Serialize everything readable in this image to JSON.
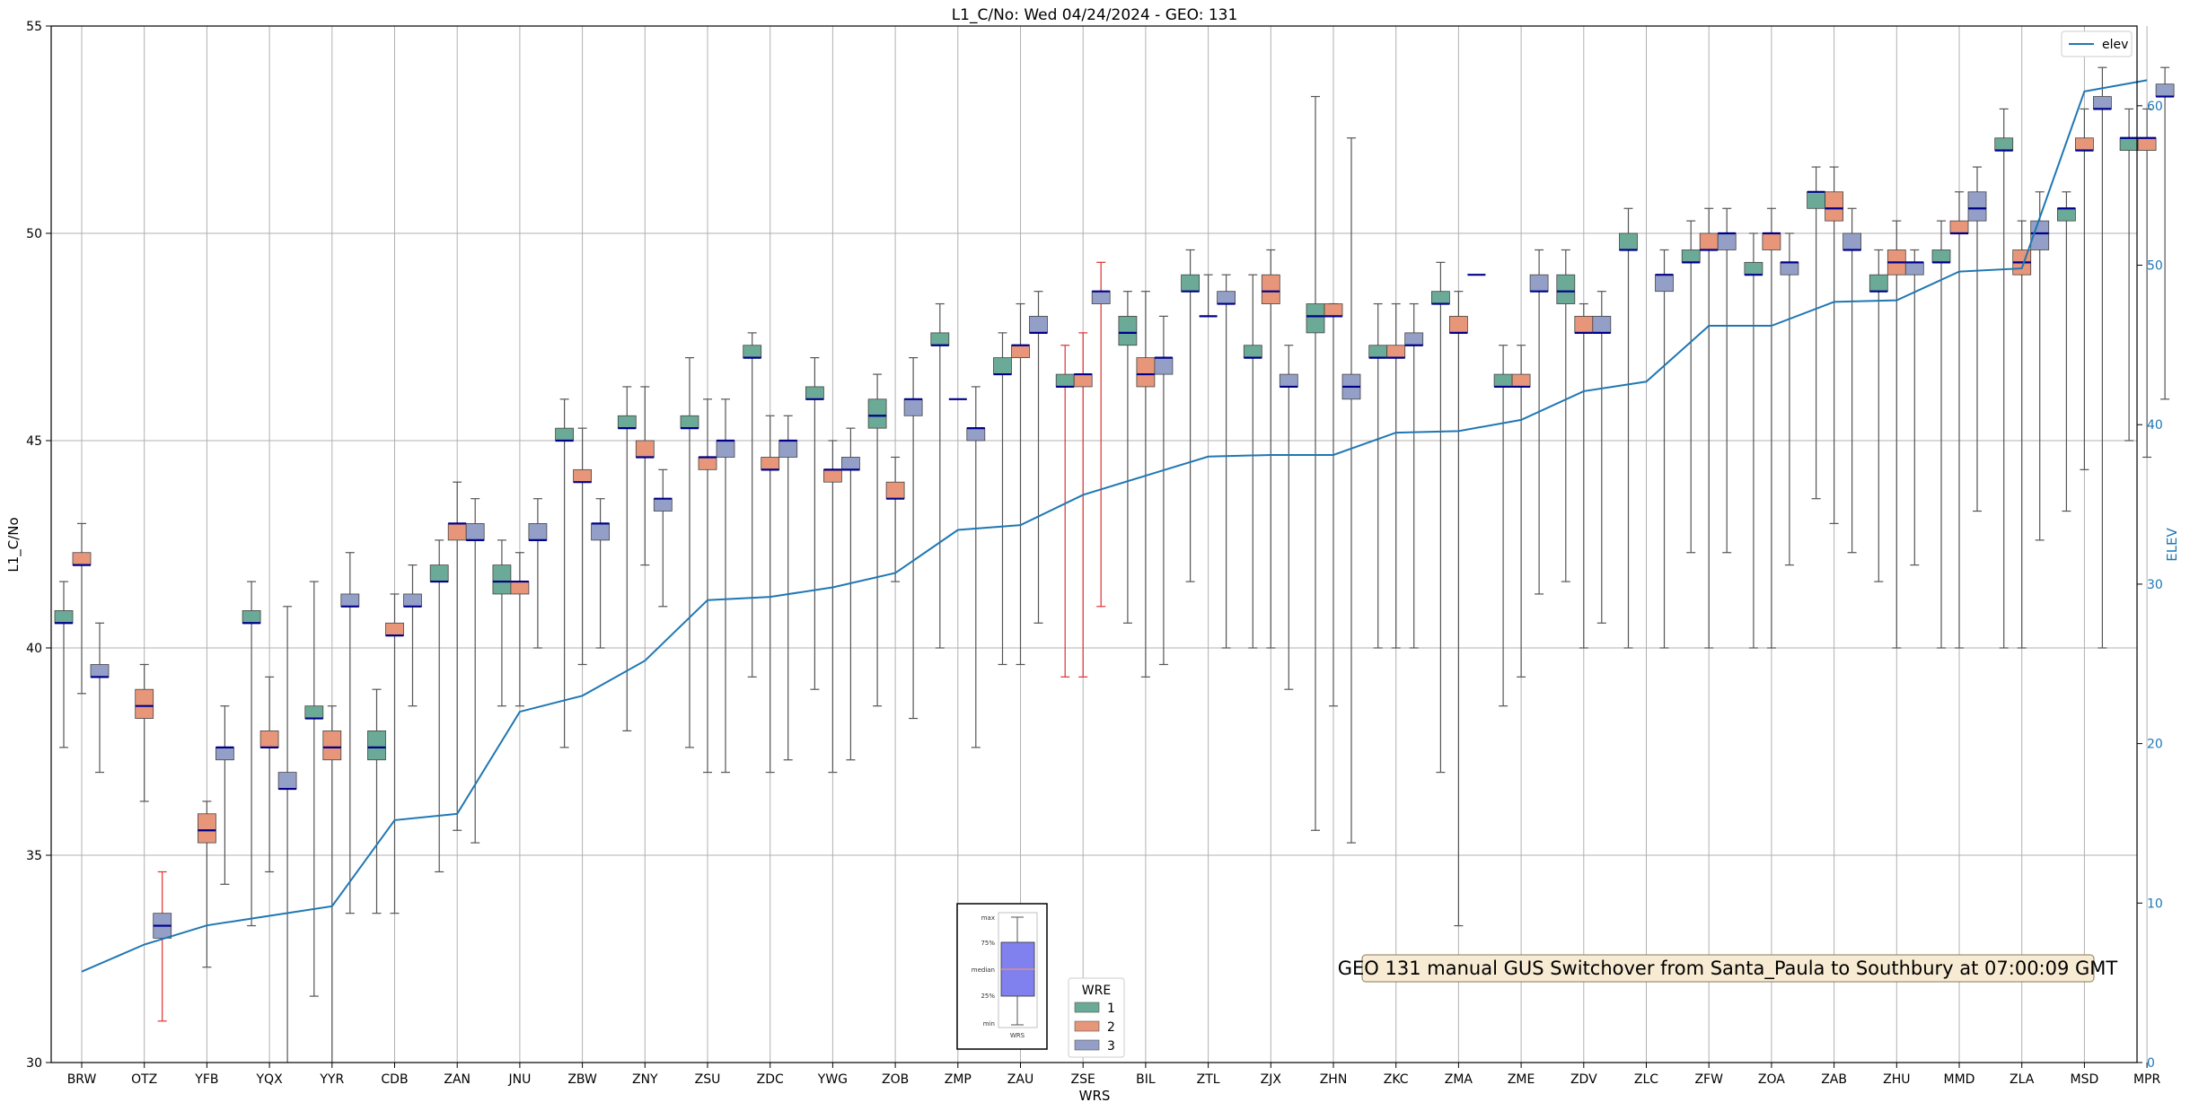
{
  "chart_data": {
    "type": "box",
    "title": "L1_C/No: Wed 04/24/2024 - GEO: 131",
    "xlabel": "WRS",
    "ylabel": "L1_C/No",
    "y2label": "ELEV",
    "ylim": [
      30,
      55
    ],
    "y2lim": [
      0,
      65
    ],
    "yticks": [
      30,
      35,
      40,
      45,
      50,
      55
    ],
    "y2ticks": [
      0,
      10,
      20,
      30,
      40,
      50,
      60
    ],
    "grid": true,
    "categories": [
      "BRW",
      "OTZ",
      "YFB",
      "YQX",
      "YYR",
      "CDB",
      "ZAN",
      "JNU",
      "ZBW",
      "ZNY",
      "ZSU",
      "ZDC",
      "YWG",
      "ZOB",
      "ZMP",
      "ZAU",
      "ZSE",
      "BIL",
      "ZTL",
      "ZJX",
      "ZHN",
      "ZKC",
      "ZMA",
      "ZME",
      "ZDV",
      "ZLC",
      "ZFW",
      "ZOA",
      "ZAB",
      "ZHU",
      "MMD",
      "ZLA",
      "MSD",
      "MPR"
    ],
    "elev": {
      "name": "elev",
      "values": [
        5.7,
        7.4,
        8.6,
        9.2,
        9.8,
        15.2,
        15.6,
        22.0,
        23.0,
        25.2,
        29.0,
        29.2,
        29.8,
        30.7,
        33.4,
        33.7,
        35.6,
        36.8,
        38.0,
        38.1,
        38.1,
        39.5,
        39.6,
        40.3,
        42.1,
        42.7,
        46.2,
        46.2,
        47.7,
        47.8,
        49.6,
        49.8,
        60.9,
        61.6
      ]
    },
    "series": [
      {
        "name": "1",
        "color": "#6aaa96",
        "boxes": [
          [
            37.6,
            40.6,
            40.6,
            40.9,
            41.6
          ],
          null,
          null,
          [
            33.3,
            40.6,
            40.6,
            40.9,
            41.6
          ],
          [
            31.6,
            38.3,
            38.3,
            38.6,
            41.6
          ],
          [
            33.6,
            37.3,
            37.6,
            38.0,
            39.0
          ],
          [
            34.6,
            41.6,
            41.6,
            42.0,
            42.6
          ],
          [
            38.6,
            41.3,
            41.6,
            42.0,
            42.6
          ],
          [
            37.6,
            45.0,
            45.0,
            45.3,
            46.0
          ],
          [
            38.0,
            45.3,
            45.3,
            45.6,
            46.3
          ],
          [
            37.6,
            45.3,
            45.3,
            45.6,
            47.0
          ],
          [
            39.3,
            47.0,
            47.0,
            47.3,
            47.6
          ],
          [
            39.0,
            46.0,
            46.0,
            46.3,
            47.0
          ],
          [
            38.6,
            45.3,
            45.6,
            46.0,
            46.6
          ],
          [
            40.0,
            47.3,
            47.3,
            47.6,
            48.3
          ],
          [
            39.6,
            46.6,
            46.6,
            47.0,
            47.6
          ],
          [
            39.3,
            46.3,
            46.3,
            46.6,
            47.3
          ],
          [
            40.6,
            47.3,
            47.6,
            48.0,
            48.6
          ],
          [
            41.6,
            48.6,
            48.6,
            49.0,
            49.6
          ],
          [
            40.0,
            47.0,
            47.0,
            47.3,
            49.0
          ],
          [
            35.6,
            47.6,
            48.0,
            48.3,
            53.3
          ],
          [
            40.0,
            47.0,
            47.0,
            47.3,
            48.3
          ],
          [
            37.0,
            48.3,
            48.3,
            48.6,
            49.3
          ],
          [
            38.6,
            46.3,
            46.3,
            46.6,
            47.3
          ],
          [
            41.6,
            48.3,
            48.6,
            49.0,
            49.6
          ],
          [
            40.0,
            49.6,
            49.6,
            50.0,
            50.6
          ],
          [
            42.3,
            49.3,
            49.3,
            49.6,
            50.3
          ],
          [
            40.0,
            49.0,
            49.0,
            49.3,
            50.0
          ],
          [
            43.6,
            50.6,
            51.0,
            51.0,
            51.6
          ],
          [
            41.6,
            48.6,
            48.6,
            49.0,
            49.6
          ],
          [
            40.0,
            49.3,
            49.3,
            49.6,
            50.3
          ],
          [
            40.0,
            52.0,
            52.0,
            52.3,
            53.0
          ],
          [
            43.3,
            50.3,
            50.6,
            50.6,
            51.0
          ],
          [
            45.0,
            52.0,
            52.3,
            52.3,
            53.0
          ]
        ]
      },
      {
        "name": "2",
        "color": "#e8967a",
        "boxes": [
          [
            38.9,
            42.0,
            42.0,
            42.3,
            43.0
          ],
          [
            36.3,
            38.3,
            38.6,
            39.0,
            39.6
          ],
          [
            32.3,
            35.3,
            35.6,
            36.0,
            36.3
          ],
          [
            34.6,
            37.6,
            37.6,
            38.0,
            39.3
          ],
          [
            29.0,
            37.3,
            37.6,
            38.0,
            38.6
          ],
          [
            33.6,
            40.3,
            40.3,
            40.6,
            41.3
          ],
          [
            35.6,
            42.6,
            43.0,
            43.0,
            44.0
          ],
          [
            38.6,
            41.3,
            41.6,
            41.6,
            42.3
          ],
          [
            39.6,
            44.0,
            44.0,
            44.3,
            45.3
          ],
          [
            42.0,
            44.6,
            44.6,
            45.0,
            46.3
          ],
          [
            37.0,
            44.3,
            44.6,
            44.6,
            46.0
          ],
          [
            37.0,
            44.3,
            44.3,
            44.6,
            45.6
          ],
          [
            37.0,
            44.0,
            44.3,
            44.3,
            45.0
          ],
          [
            41.6,
            43.6,
            43.6,
            44.0,
            44.6
          ],
          [
            null,
            46.0,
            46.0,
            null,
            null
          ],
          [
            39.6,
            47.0,
            47.3,
            47.3,
            48.3
          ],
          [
            39.3,
            46.3,
            46.6,
            46.6,
            47.6
          ],
          [
            39.3,
            46.3,
            46.6,
            47.0,
            48.6
          ],
          [
            48.0,
            48.0,
            48.0,
            48.0,
            49.0
          ],
          [
            40.0,
            48.3,
            48.6,
            49.0,
            49.6
          ],
          [
            38.6,
            48.0,
            48.0,
            48.3,
            48.3
          ],
          [
            40.0,
            47.0,
            47.0,
            47.3,
            48.3
          ],
          [
            33.3,
            47.6,
            47.6,
            48.0,
            48.6
          ],
          [
            39.3,
            46.3,
            46.3,
            46.6,
            47.3
          ],
          [
            40.0,
            47.6,
            47.6,
            48.0,
            48.3
          ],
          null,
          [
            40.0,
            49.6,
            49.6,
            50.0,
            50.6
          ],
          [
            40.0,
            49.6,
            50.0,
            50.0,
            50.6
          ],
          [
            43.0,
            50.3,
            50.6,
            51.0,
            51.6
          ],
          [
            40.0,
            49.0,
            49.3,
            49.6,
            50.3
          ],
          [
            40.0,
            50.0,
            50.0,
            50.3,
            51.0
          ],
          [
            40.0,
            49.0,
            49.3,
            49.6,
            50.3
          ],
          [
            44.3,
            52.0,
            52.0,
            52.3,
            53.0
          ],
          [
            44.6,
            52.0,
            52.3,
            52.3,
            53.0
          ]
        ]
      },
      {
        "name": "3",
        "color": "#949fc7",
        "boxes": [
          [
            37.0,
            39.3,
            39.3,
            39.6,
            40.6
          ],
          [
            31.0,
            33.0,
            33.3,
            33.6,
            34.6
          ],
          [
            34.3,
            37.3,
            37.6,
            37.6,
            38.6
          ],
          [
            29.0,
            36.6,
            36.6,
            37.0,
            41.0
          ],
          [
            33.6,
            41.0,
            41.0,
            41.3,
            42.3
          ],
          [
            38.6,
            41.0,
            41.0,
            41.3,
            42.0
          ],
          [
            35.3,
            42.6,
            42.6,
            43.0,
            43.6
          ],
          [
            40.0,
            42.6,
            42.6,
            43.0,
            43.6
          ],
          [
            40.0,
            42.6,
            43.0,
            43.0,
            43.6
          ],
          [
            41.0,
            43.3,
            43.6,
            43.6,
            44.3
          ],
          [
            37.0,
            44.6,
            45.0,
            45.0,
            46.0
          ],
          [
            37.3,
            44.6,
            45.0,
            45.0,
            45.6
          ],
          [
            37.3,
            44.3,
            44.3,
            44.6,
            45.3
          ],
          [
            38.3,
            45.6,
            46.0,
            46.0,
            47.0
          ],
          [
            37.6,
            45.0,
            45.3,
            45.3,
            46.3
          ],
          [
            40.6,
            47.6,
            47.6,
            48.0,
            48.6
          ],
          [
            41.0,
            48.3,
            48.6,
            48.6,
            49.3
          ],
          [
            39.6,
            46.6,
            47.0,
            47.0,
            48.0
          ],
          [
            40.0,
            48.3,
            48.3,
            48.6,
            49.0
          ],
          [
            39.0,
            46.3,
            46.3,
            46.6,
            47.3
          ],
          [
            35.3,
            46.0,
            46.3,
            46.6,
            52.3
          ],
          [
            40.0,
            47.3,
            47.3,
            47.6,
            48.3
          ],
          [
            null,
            49.0,
            49.0,
            null,
            49.6
          ],
          [
            41.3,
            48.6,
            48.6,
            49.0,
            49.6
          ],
          [
            40.6,
            47.6,
            47.6,
            48.0,
            48.6
          ],
          [
            40.0,
            48.6,
            49.0,
            49.0,
            49.6
          ],
          [
            42.3,
            49.6,
            50.0,
            50.0,
            50.6
          ],
          [
            42.0,
            49.0,
            49.3,
            49.3,
            50.0
          ],
          [
            42.3,
            49.6,
            49.6,
            50.0,
            50.6
          ],
          [
            42.0,
            49.0,
            49.3,
            49.3,
            49.6
          ],
          [
            43.3,
            50.3,
            50.6,
            51.0,
            51.6
          ],
          [
            42.6,
            49.6,
            50.0,
            50.3,
            51.0
          ],
          [
            40.0,
            53.0,
            53.0,
            53.3,
            54.0
          ],
          [
            46.0,
            53.3,
            53.3,
            53.6,
            54.0
          ]
        ]
      }
    ],
    "red_whiskers": [
      {
        "category": "OTZ",
        "series": "3"
      },
      {
        "category": "ZSE",
        "series": "1"
      },
      {
        "category": "ZSE",
        "series": "2"
      },
      {
        "category": "ZSE",
        "series": "3"
      }
    ],
    "legend_elev": {
      "label": "elev",
      "position": "top-right"
    },
    "legend_wre": {
      "title": "WRE",
      "entries": [
        "1",
        "2",
        "3"
      ],
      "position": "bottom-center"
    },
    "inset_labels": [
      "max",
      "75%",
      "median",
      "25%",
      "min",
      "WRS"
    ],
    "annotation": "GEO 131 manual GUS Switchover from Santa_Paula to Southbury at 07:00:09 GMT",
    "colors": {
      "elev_line": "#1f77b4",
      "median": "#00008b",
      "whisker": "#555555",
      "whisker_red": "#e03030",
      "annotation_bg": "#f8ebd3"
    }
  }
}
